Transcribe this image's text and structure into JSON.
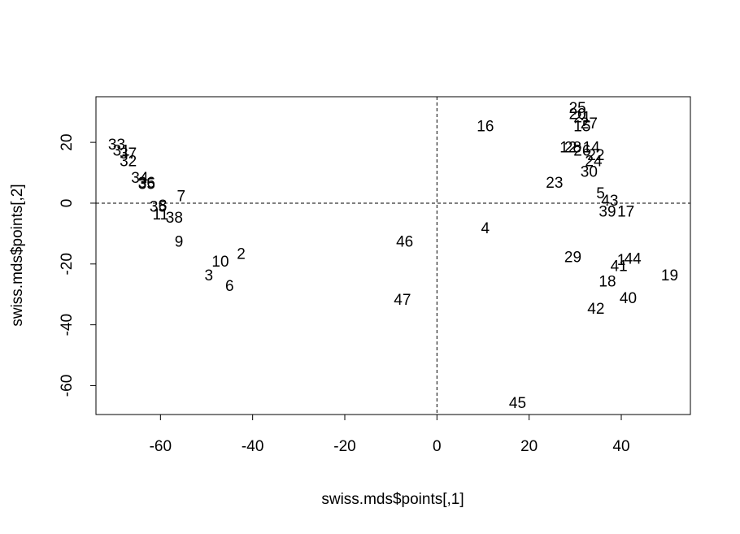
{
  "chart_data": {
    "type": "scatter",
    "title": "",
    "xlabel": "swiss.mds$points[,1]",
    "ylabel": "swiss.mds$points[,2]",
    "xlim": [
      -74,
      55
    ],
    "ylim": [
      -69.5,
      35
    ],
    "xticks": [
      -60,
      -40,
      -20,
      0,
      20,
      40
    ],
    "yticks": [
      -60,
      -40,
      -20,
      0,
      20
    ],
    "grid": false,
    "legend": "none",
    "reference_lines": {
      "x": 0,
      "y": 0,
      "style": "dashed"
    },
    "marker": "text-labels",
    "points": [
      {
        "label": "33",
        "x": -69.5,
        "y": 19.5
      },
      {
        "label": "31",
        "x": -68.5,
        "y": 17.5
      },
      {
        "label": "37",
        "x": -67,
        "y": 16.5
      },
      {
        "label": "32",
        "x": -67,
        "y": 14
      },
      {
        "label": "34",
        "x": -64.5,
        "y": 8.5
      },
      {
        "label": "35",
        "x": -63,
        "y": 6.5
      },
      {
        "label": "36",
        "x": -63,
        "y": 7
      },
      {
        "label": "7",
        "x": -55.5,
        "y": 2.5
      },
      {
        "label": "35",
        "x": -60.5,
        "y": -1
      },
      {
        "label": "8",
        "x": -59.5,
        "y": -0.5
      },
      {
        "label": "11",
        "x": -60,
        "y": -3.5
      },
      {
        "label": "38",
        "x": -57,
        "y": -4.5
      },
      {
        "label": "9",
        "x": -56,
        "y": -12.5
      },
      {
        "label": "2",
        "x": -42.5,
        "y": -16.5
      },
      {
        "label": "10",
        "x": -47,
        "y": -19
      },
      {
        "label": "3",
        "x": -49.5,
        "y": -23.5
      },
      {
        "label": "6",
        "x": -45,
        "y": -27
      },
      {
        "label": "46",
        "x": -7,
        "y": -12.5
      },
      {
        "label": "47",
        "x": -7.5,
        "y": -31.5
      },
      {
        "label": "4",
        "x": 10.5,
        "y": -8
      },
      {
        "label": "16",
        "x": 10.5,
        "y": 25.5
      },
      {
        "label": "25",
        "x": 30.5,
        "y": 31.5
      },
      {
        "label": "20",
        "x": 30.5,
        "y": 29.5
      },
      {
        "label": "21",
        "x": 31.5,
        "y": 28.5
      },
      {
        "label": "15",
        "x": 31.5,
        "y": 25.5
      },
      {
        "label": "27",
        "x": 33,
        "y": 26.5
      },
      {
        "label": "12",
        "x": 28.5,
        "y": 18.5
      },
      {
        "label": "28",
        "x": 29.5,
        "y": 18.5
      },
      {
        "label": "14",
        "x": 33.5,
        "y": 18.5
      },
      {
        "label": "26",
        "x": 31.5,
        "y": 17.5
      },
      {
        "label": "22",
        "x": 34.5,
        "y": 16
      },
      {
        "label": "24",
        "x": 34,
        "y": 14
      },
      {
        "label": "30",
        "x": 33,
        "y": 10.5
      },
      {
        "label": "23",
        "x": 25.5,
        "y": 7
      },
      {
        "label": "5",
        "x": 35.5,
        "y": 3.5
      },
      {
        "label": "43",
        "x": 37.5,
        "y": 1
      },
      {
        "label": "39",
        "x": 37,
        "y": -2.5
      },
      {
        "label": "17",
        "x": 41,
        "y": -2.5
      },
      {
        "label": "29",
        "x": 29.5,
        "y": -17.5
      },
      {
        "label": "1",
        "x": 40,
        "y": -18.5
      },
      {
        "label": "41",
        "x": 39.5,
        "y": -20.5
      },
      {
        "label": "44",
        "x": 42.5,
        "y": -18
      },
      {
        "label": "18",
        "x": 37,
        "y": -25.5
      },
      {
        "label": "19",
        "x": 50.5,
        "y": -23.5
      },
      {
        "label": "40",
        "x": 41.5,
        "y": -31
      },
      {
        "label": "42",
        "x": 34.5,
        "y": -34.5
      },
      {
        "label": "45",
        "x": 17.5,
        "y": -65.5
      }
    ]
  }
}
